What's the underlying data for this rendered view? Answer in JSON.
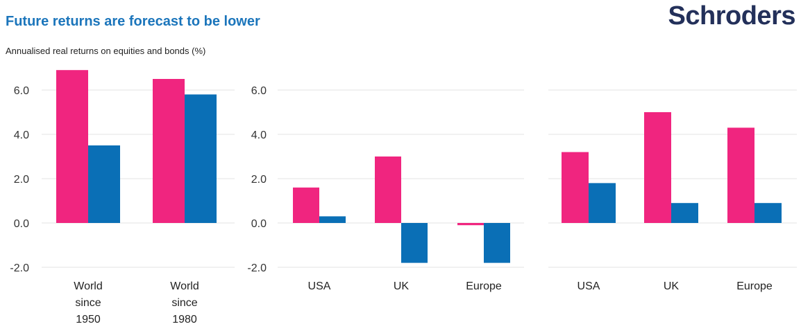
{
  "title": "Future returns are forecast to be lower",
  "subtitle": "Annualised real returns on equities and bonds (%)",
  "logo": "Schroders",
  "colors": {
    "equities": "#f0257f",
    "bonds": "#0a6fb6",
    "gridline": "#e3e3e3",
    "title": "#1b75bb",
    "logo": "#23305a"
  },
  "chart_data": [
    {
      "type": "bar",
      "categories": [
        [
          "World",
          "since",
          "1950"
        ],
        [
          "World",
          "since",
          "1980"
        ]
      ],
      "series": [
        {
          "values": [
            6.9,
            6.5
          ]
        },
        {
          "values": [
            3.5,
            5.8
          ]
        }
      ],
      "ylim": [
        -2,
        7
      ],
      "yticks": [
        "6.0",
        "4.0",
        "2.0",
        "0.0",
        "-2.0"
      ],
      "grid": true
    },
    {
      "type": "bar",
      "categories": [
        [
          "USA"
        ],
        [
          "UK"
        ],
        [
          "Europe"
        ]
      ],
      "series": [
        {
          "values": [
            1.6,
            3.0,
            -0.1
          ]
        },
        {
          "values": [
            0.3,
            -1.8,
            -1.8
          ]
        }
      ],
      "ylim": [
        -2,
        7
      ],
      "yticks": [
        "6.0",
        "4.0",
        "2.0",
        "0.0",
        "-2.0"
      ],
      "grid": true
    },
    {
      "type": "bar",
      "categories": [
        [
          "USA"
        ],
        [
          "UK"
        ],
        [
          "Europe"
        ]
      ],
      "series": [
        {
          "values": [
            3.2,
            5.0,
            4.3
          ]
        },
        {
          "values": [
            1.8,
            0.9,
            0.9
          ]
        }
      ],
      "ylim": [
        -2,
        7
      ],
      "yticks": [],
      "grid": true
    }
  ]
}
